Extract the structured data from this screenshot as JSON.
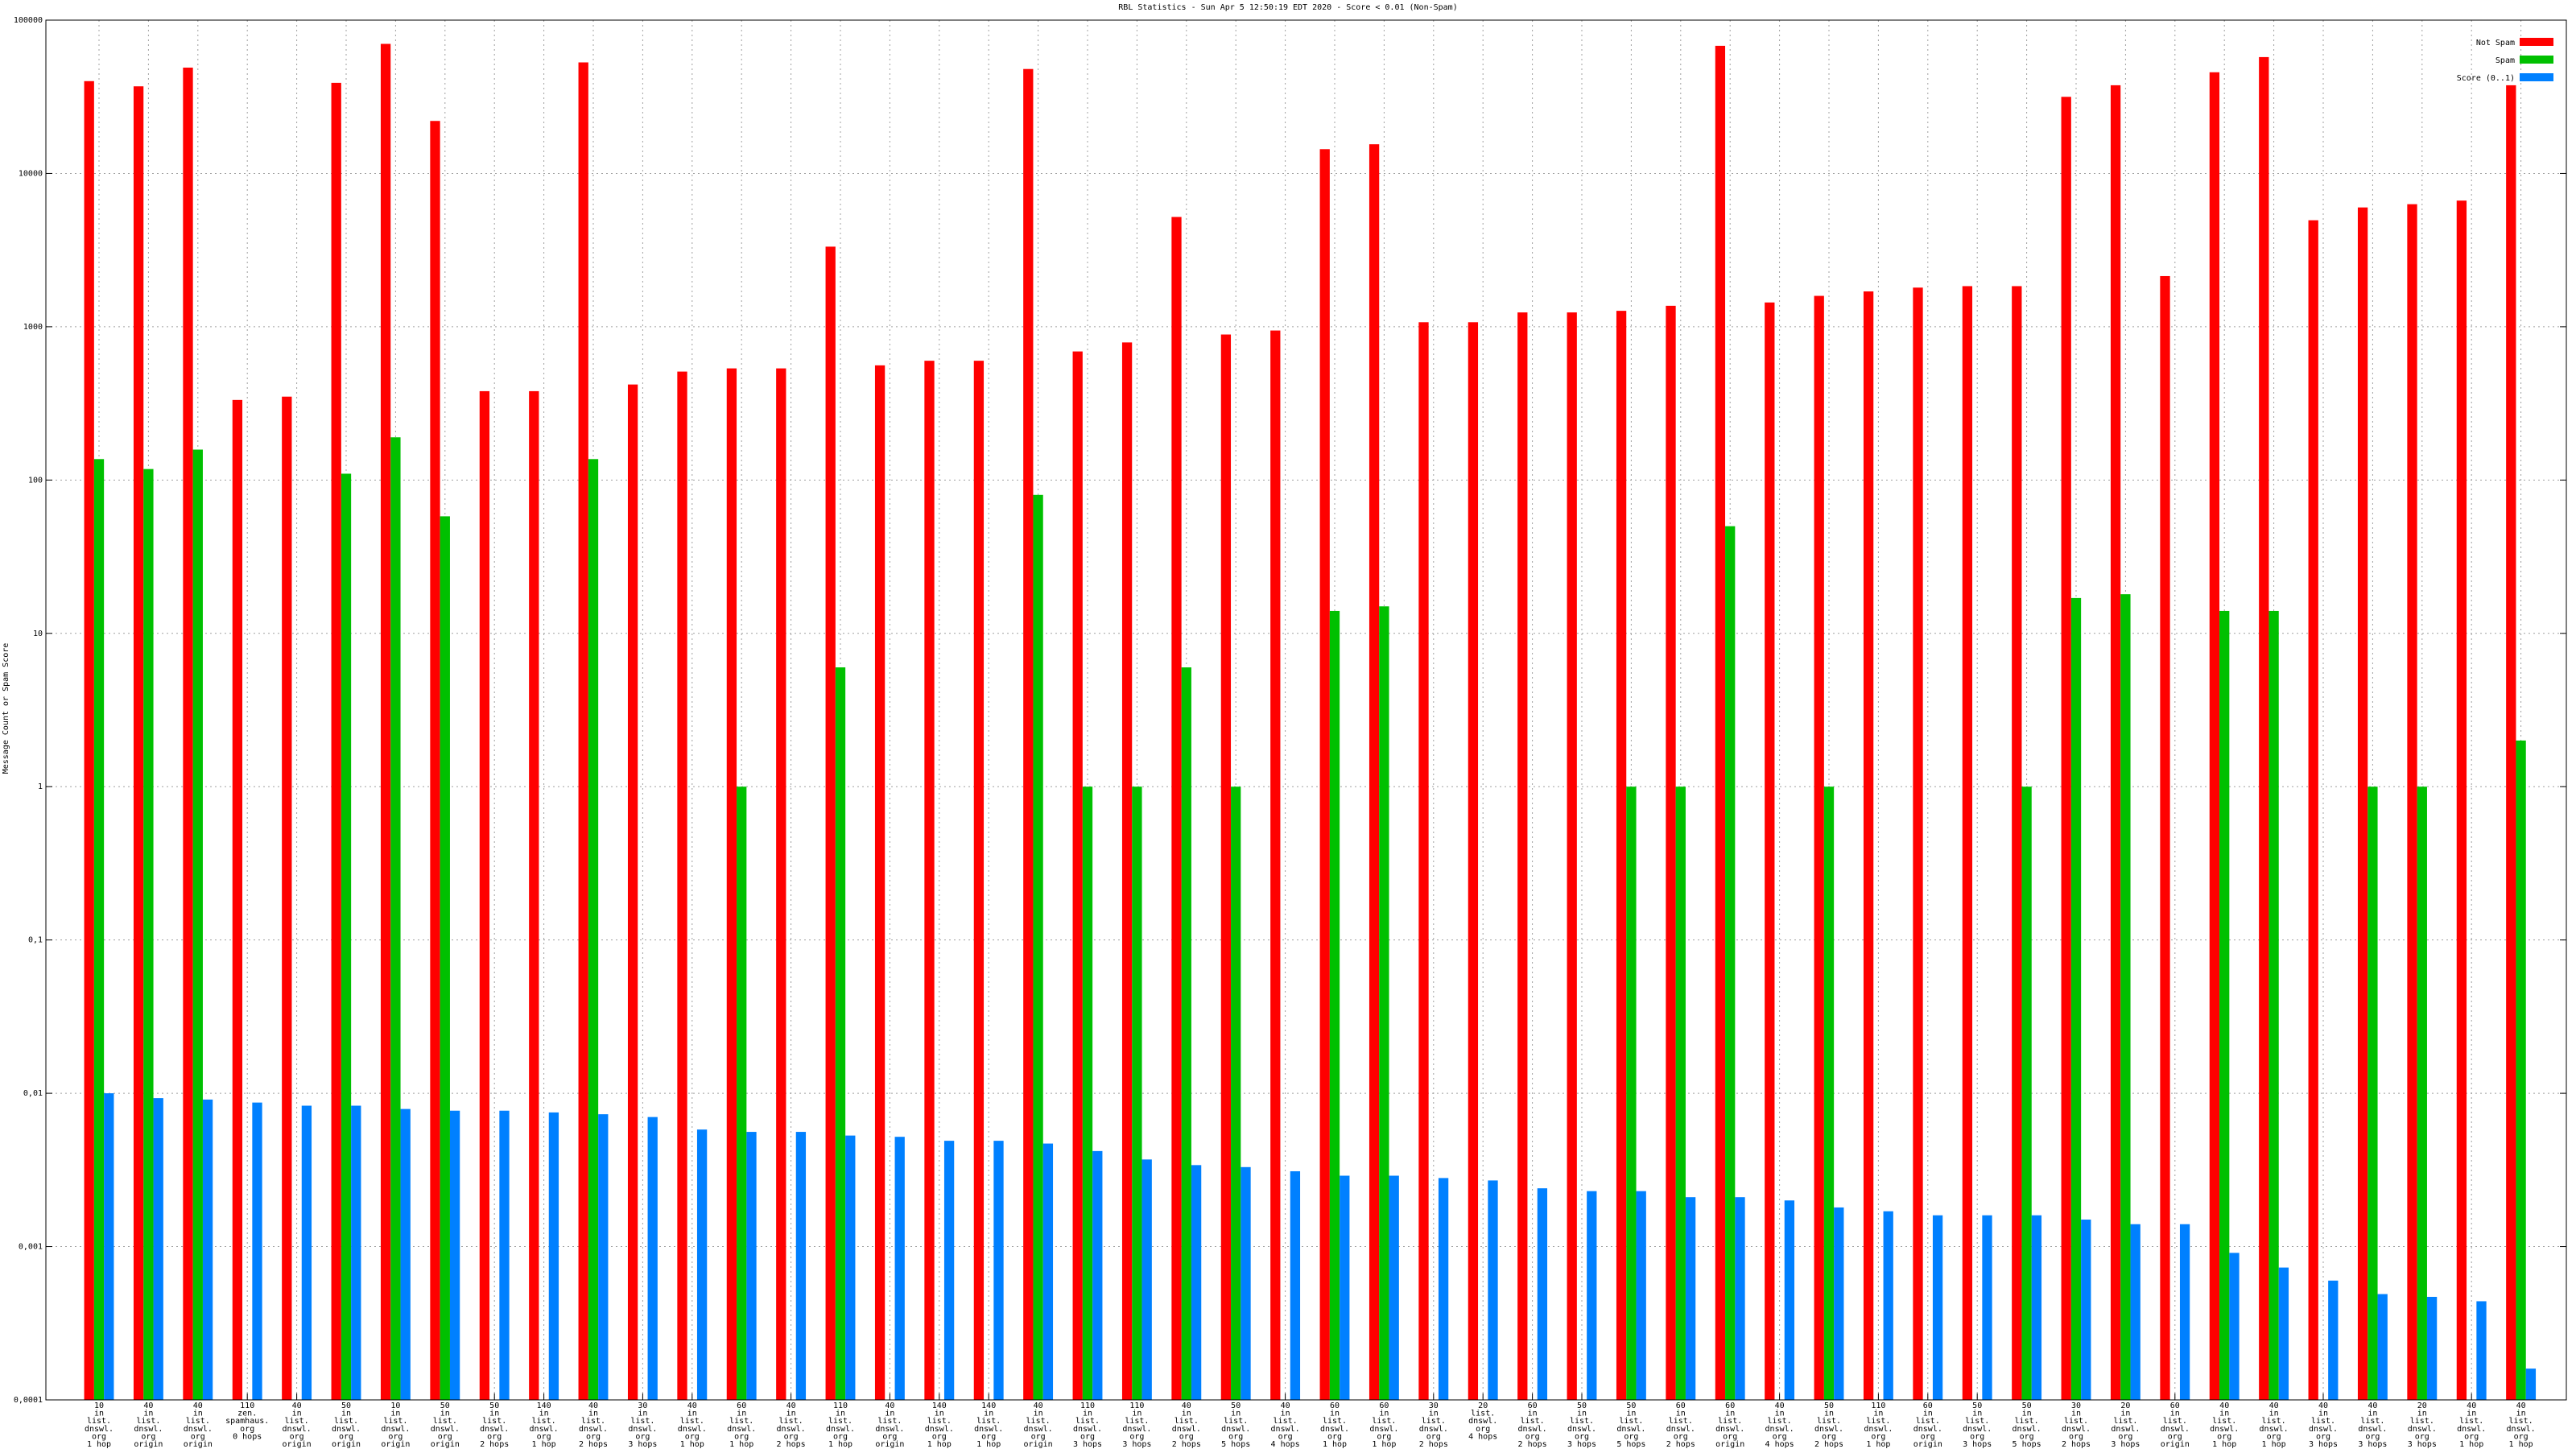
{
  "chart_data": {
    "type": "bar",
    "title": "RBL Statistics - Sun Apr  5 12:50:19 EDT 2020 - Score < 0.01 (Non-Spam)",
    "y_label": "Message Count or Spam Score",
    "log_scale": true,
    "grid": true,
    "legend": "top-right",
    "ylim": [
      0.0001,
      100000
    ],
    "yticks": [
      {
        "value": 0.0001,
        "label": "0,0001"
      },
      {
        "value": 0.001,
        "label": "0,001"
      },
      {
        "value": 0.01,
        "label": "0,01"
      },
      {
        "value": 0.1,
        "label": "0,1"
      },
      1,
      10,
      100,
      1000,
      10000,
      100000
    ],
    "categories": [
      [
        "10",
        "in",
        "list.",
        "dnswl.",
        "org",
        "1 hop"
      ],
      [
        "40",
        "in",
        "list.",
        "dnswl.",
        "org",
        "origin"
      ],
      [
        "40",
        "in",
        "list.",
        "dnswl.",
        "org",
        "origin"
      ],
      [
        "110",
        "zen.",
        "spamhaus.",
        "org",
        "0 hops"
      ],
      [
        "40",
        "in",
        "list.",
        "dnswl.",
        "org",
        "origin"
      ],
      [
        "50",
        "in",
        "list.",
        "dnswl.",
        "org",
        "origin"
      ],
      [
        "10",
        "in",
        "list.",
        "dnswl.",
        "org",
        "origin"
      ],
      [
        "50",
        "in",
        "list.",
        "dnswl.",
        "org",
        "origin"
      ],
      [
        "50",
        "in",
        "list.",
        "dnswl.",
        "org",
        "2 hops"
      ],
      [
        "140",
        "in",
        "list.",
        "dnswl.",
        "org",
        "1 hop"
      ],
      [
        "40",
        "in",
        "list.",
        "dnswl.",
        "org",
        "2 hops"
      ],
      [
        "30",
        "in",
        "list.",
        "dnswl.",
        "org",
        "3 hops"
      ],
      [
        "40",
        "in",
        "list.",
        "dnswl.",
        "org",
        "1 hop"
      ],
      [
        "60",
        "in",
        "list.",
        "dnswl.",
        "org",
        "1 hop"
      ],
      [
        "40",
        "in",
        "list.",
        "dnswl.",
        "org",
        "2 hops"
      ],
      [
        "110",
        "in",
        "list.",
        "dnswl.",
        "org",
        "1 hop"
      ],
      [
        "40",
        "in",
        "list.",
        "dnswl.",
        "org",
        "origin"
      ],
      [
        "140",
        "in",
        "list.",
        "dnswl.",
        "org",
        "1 hop"
      ],
      [
        "140",
        "in",
        "list.",
        "dnswl.",
        "org",
        "1 hop"
      ],
      [
        "40",
        "in",
        "list.",
        "dnswl.",
        "org",
        "origin"
      ],
      [
        "110",
        "in",
        "list.",
        "dnswl.",
        "org",
        "3 hops"
      ],
      [
        "110",
        "in",
        "list.",
        "dnswl.",
        "org",
        "3 hops"
      ],
      [
        "40",
        "in",
        "list.",
        "dnswl.",
        "org",
        "2 hops"
      ],
      [
        "50",
        "in",
        "list.",
        "dnswl.",
        "org",
        "5 hops"
      ],
      [
        "40",
        "in",
        "list.",
        "dnswl.",
        "org",
        "4 hops"
      ],
      [
        "60",
        "in",
        "list.",
        "dnswl.",
        "org",
        "1 hop"
      ],
      [
        "60",
        "in",
        "list.",
        "dnswl.",
        "org",
        "1 hop"
      ],
      [
        "30",
        "in",
        "list.",
        "dnswl.",
        "org",
        "2 hops"
      ],
      [
        "20",
        "list.",
        "dnswl.",
        "org",
        "4 hops"
      ],
      [
        "60",
        "in",
        "list.",
        "dnswl.",
        "org",
        "2 hops"
      ],
      [
        "50",
        "in",
        "list.",
        "dnswl.",
        "org",
        "3 hops"
      ],
      [
        "50",
        "in",
        "list.",
        "dnswl.",
        "org",
        "5 hops"
      ],
      [
        "60",
        "in",
        "list.",
        "dnswl.",
        "org",
        "2 hops"
      ],
      [
        "60",
        "in",
        "list.",
        "dnswl.",
        "org",
        "origin"
      ],
      [
        "40",
        "in",
        "list.",
        "dnswl.",
        "org",
        "4 hops"
      ],
      [
        "50",
        "in",
        "list.",
        "dnswl.",
        "org",
        "2 hops"
      ],
      [
        "110",
        "in",
        "list.",
        "dnswl.",
        "org",
        "1 hop"
      ],
      [
        "60",
        "in",
        "list.",
        "dnswl.",
        "org",
        "origin"
      ],
      [
        "50",
        "in",
        "list.",
        "dnswl.",
        "org",
        "3 hops"
      ],
      [
        "50",
        "in",
        "list.",
        "dnswl.",
        "org",
        "5 hops"
      ],
      [
        "30",
        "in",
        "list.",
        "dnswl.",
        "org",
        "2 hops"
      ],
      [
        "20",
        "in",
        "list.",
        "dnswl.",
        "org",
        "3 hops"
      ],
      [
        "60",
        "in",
        "list.",
        "dnswl.",
        "org",
        "origin"
      ],
      [
        "40",
        "in",
        "list.",
        "dnswl.",
        "org",
        "1 hop"
      ],
      [
        "40",
        "in",
        "list.",
        "dnswl.",
        "org",
        "1 hop"
      ],
      [
        "40",
        "in",
        "list.",
        "dnswl.",
        "org",
        "3 hops"
      ],
      [
        "40",
        "in",
        "list.",
        "dnswl.",
        "org",
        "3 hops"
      ],
      [
        "20",
        "in",
        "list.",
        "dnswl.",
        "org",
        "3 hops"
      ],
      [
        "40",
        "in",
        "list.",
        "dnswl.",
        "org",
        "1 hop"
      ],
      [
        "40",
        "in",
        "list.",
        "dnswl.",
        "org",
        "1 hop"
      ]
    ],
    "series": [
      {
        "name": "Not Spam",
        "color": "#ff0000",
        "values": [
          40000,
          37000,
          49000,
          333,
          350,
          39000,
          70000,
          22000,
          380,
          380,
          53000,
          420,
          510,
          535,
          535,
          3330,
          560,
          600,
          600,
          48000,
          690,
          790,
          5200,
          890,
          945,
          14400,
          15500,
          1070,
          1070,
          1240,
          1240,
          1270,
          1370,
          68000,
          1440,
          1590,
          1700,
          1800,
          1840,
          1840,
          31600,
          37600,
          2140,
          45700,
          57400,
          4950,
          6000,
          6300,
          6650,
          37600
        ]
      },
      {
        "name": "Spam",
        "color": "#00c000",
        "values": [
          137,
          118,
          158,
          null,
          null,
          110,
          190,
          58,
          null,
          null,
          137,
          null,
          null,
          1,
          null,
          6,
          null,
          null,
          null,
          80,
          1,
          1,
          6,
          1,
          null,
          14,
          15,
          null,
          null,
          null,
          null,
          1,
          1,
          50,
          null,
          1,
          null,
          null,
          null,
          1,
          17,
          18,
          null,
          14,
          14,
          null,
          1,
          1,
          null,
          2
        ]
      },
      {
        "name": "Score (0..1)",
        "color": "#0080ff",
        "values": [
          0.01,
          0.0093,
          0.0091,
          0.0087,
          0.0083,
          0.0083,
          0.0079,
          0.0077,
          0.0077,
          0.0075,
          0.0073,
          0.007,
          0.0058,
          0.0056,
          0.0056,
          0.0053,
          0.0052,
          0.0049,
          0.0049,
          0.0047,
          0.0042,
          0.0037,
          0.0034,
          0.0033,
          0.0031,
          0.0029,
          0.0029,
          0.0028,
          0.0027,
          0.0024,
          0.0023,
          0.0023,
          0.0021,
          0.0021,
          0.002,
          0.0018,
          0.0017,
          0.0016,
          0.0016,
          0.0016,
          0.0015,
          0.0014,
          0.0014,
          0.00091,
          0.00073,
          0.0006,
          0.00049,
          0.00047,
          0.00044,
          0.00016
        ]
      }
    ]
  }
}
